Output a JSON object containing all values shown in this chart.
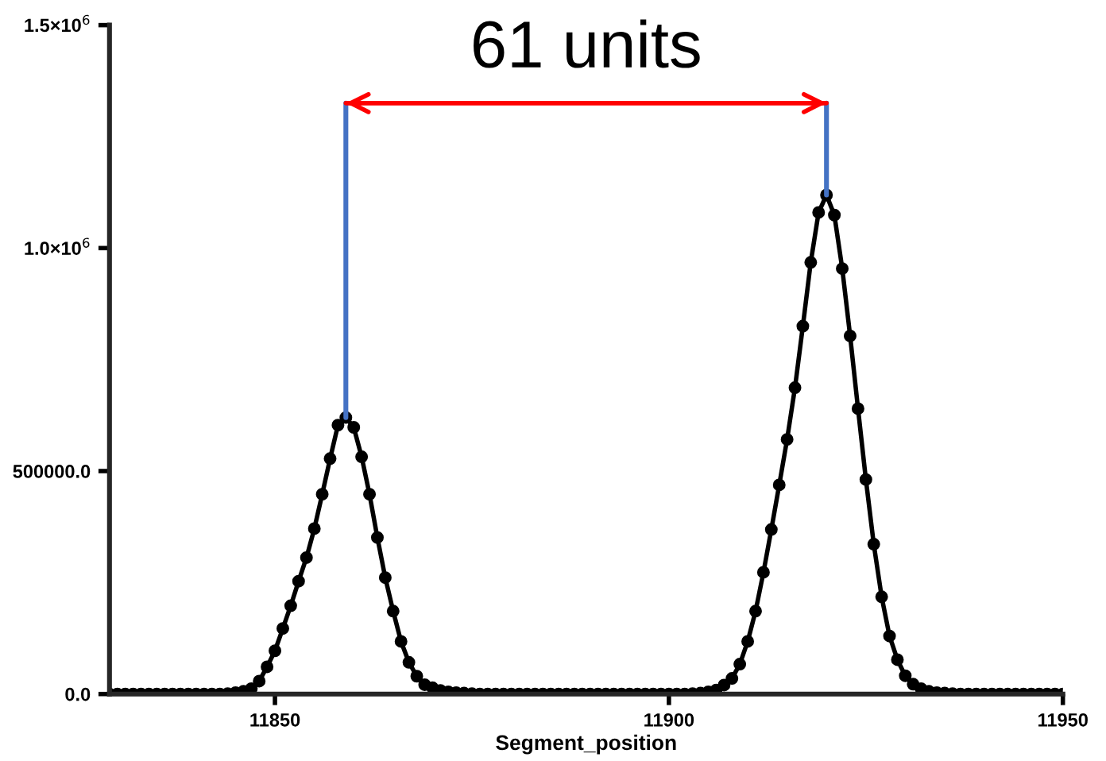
{
  "chart_data": {
    "type": "line",
    "xlabel": "Segment_position",
    "xlim": [
      11829,
      11950
    ],
    "xticks": [
      11850,
      11900,
      11950
    ],
    "ylim": [
      0,
      1500000
    ],
    "yticks": [
      {
        "value": 0,
        "label": "0.0"
      },
      {
        "value": 500000,
        "label": "500000.0"
      },
      {
        "value": 1000000,
        "label": "1.0×10$^{6}$"
      },
      {
        "value": 1500000,
        "label": "1.5×10$^{6}$"
      }
    ],
    "grid": false,
    "legend": false,
    "series": [
      {
        "color": "#000000",
        "marker": "circle",
        "x": [
          11829,
          11830,
          11831,
          11832,
          11833,
          11834,
          11835,
          11836,
          11837,
          11838,
          11839,
          11840,
          11841,
          11842,
          11843,
          11844,
          11845,
          11846,
          11847,
          11848,
          11849,
          11850,
          11851,
          11852,
          11853,
          11854,
          11855,
          11856,
          11857,
          11858,
          11859,
          11860,
          11861,
          11862,
          11863,
          11864,
          11865,
          11866,
          11867,
          11868,
          11869,
          11870,
          11871,
          11872,
          11873,
          11874,
          11875,
          11876,
          11877,
          11878,
          11879,
          11880,
          11881,
          11882,
          11883,
          11884,
          11885,
          11886,
          11887,
          11888,
          11889,
          11890,
          11891,
          11892,
          11893,
          11894,
          11895,
          11896,
          11897,
          11898,
          11899,
          11900,
          11901,
          11902,
          11903,
          11904,
          11905,
          11906,
          11907,
          11908,
          11909,
          11910,
          11911,
          11912,
          11913,
          11914,
          11915,
          11916,
          11917,
          11918,
          11919,
          11920,
          11921,
          11922,
          11923,
          11924,
          11925,
          11926,
          11927,
          11928,
          11929,
          11930,
          11931,
          11932,
          11933,
          11934,
          11935,
          11936,
          11937,
          11938,
          11939,
          11940,
          11941,
          11942,
          11943,
          11944,
          11945,
          11946,
          11947,
          11948,
          11949,
          11950
        ],
        "values": [
          0,
          0,
          0,
          0,
          0,
          0,
          0,
          0,
          0,
          0,
          0,
          0,
          0,
          0,
          0,
          1000,
          3000,
          6000,
          12000,
          29000,
          61000,
          97000,
          147000,
          198000,
          253000,
          306000,
          371000,
          448000,
          528000,
          603000,
          620000,
          598000,
          532000,
          448000,
          351000,
          261000,
          186000,
          118000,
          71000,
          40000,
          21000,
          14000,
          8000,
          5000,
          3000,
          2000,
          1000,
          0,
          0,
          0,
          0,
          0,
          0,
          0,
          0,
          0,
          0,
          0,
          0,
          0,
          0,
          0,
          0,
          0,
          0,
          0,
          0,
          0,
          0,
          0,
          0,
          0,
          0,
          0,
          1000,
          2000,
          5000,
          9000,
          20000,
          35000,
          67000,
          118000,
          186000,
          273000,
          369000,
          469000,
          571000,
          687000,
          825000,
          968000,
          1080000,
          1119000,
          1074000,
          954000,
          803000,
          640000,
          481000,
          336000,
          218000,
          130000,
          77000,
          41000,
          22000,
          12000,
          6000,
          3000,
          2000,
          1000,
          0,
          0,
          0,
          0,
          0,
          0,
          0,
          0,
          0,
          0,
          0,
          0,
          0,
          0
        ]
      },
      {
        "color": "#4472c4",
        "marker": "none",
        "x": [
          11859,
          11859
        ],
        "values": [
          620000,
          1325000
        ]
      },
      {
        "color": "#4472c4",
        "marker": "none",
        "x": [
          11920,
          11920
        ],
        "values": [
          1119000,
          1325000
        ]
      },
      {
        "color": "#ff0000",
        "marker": "none",
        "x": [
          11859,
          11920
        ],
        "values": [
          1325000,
          1325000
        ]
      }
    ],
    "annotations": [
      {
        "text": "61 units",
        "x": 11889.5,
        "y": 1325000
      }
    ]
  }
}
